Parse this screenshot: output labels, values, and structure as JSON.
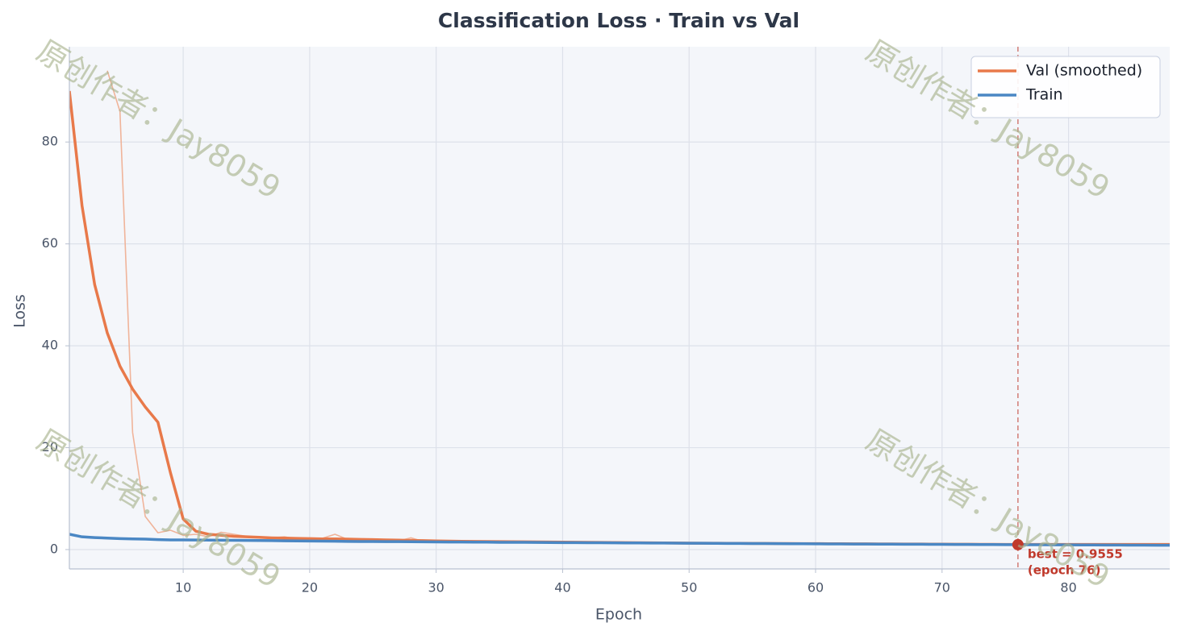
{
  "chart_data": {
    "type": "line",
    "title": "Classification Loss  ·  Train vs Val",
    "x_label": "Epoch",
    "y_label": "Loss",
    "x": [
      1,
      2,
      3,
      4,
      5,
      6,
      7,
      8,
      9,
      10,
      11,
      12,
      13,
      14,
      15,
      16,
      17,
      18,
      19,
      20,
      21,
      22,
      23,
      24,
      25,
      26,
      27,
      28,
      29,
      30,
      31,
      32,
      33,
      34,
      35,
      36,
      37,
      38,
      39,
      40,
      41,
      42,
      43,
      44,
      45,
      46,
      47,
      48,
      49,
      50,
      51,
      52,
      53,
      54,
      55,
      56,
      57,
      58,
      59,
      60,
      61,
      62,
      63,
      64,
      65,
      66,
      67,
      68,
      69,
      70,
      71,
      72,
      73,
      74,
      75,
      76,
      77,
      78,
      79,
      80,
      81,
      82,
      83,
      84,
      85,
      86,
      87,
      88
    ],
    "series": [
      {
        "color": "#f0b49a",
        "values": [
          null,
          null,
          null,
          94,
          86,
          23,
          6.5,
          3.3,
          3.8,
          2.8,
          3.0,
          2.5,
          3.4,
          3.0,
          2.6,
          2.4,
          2.3,
          2.5,
          2.1,
          2.0,
          2.2,
          3.0,
          2.0,
          2.0,
          1.9,
          1.9,
          1.7,
          2.3,
          1.6,
          1.6,
          1.6,
          1.5,
          1.5,
          1.5,
          1.5,
          1.4,
          1.5,
          1.4,
          1.4,
          1.4,
          1.4,
          1.3,
          1.3,
          1.3,
          1.3,
          1.3,
          1.2,
          1.2,
          1.2,
          1.2,
          1.2,
          1.1,
          1.2,
          1.1,
          1.1,
          1.1,
          1.1,
          1.1,
          1.1,
          1.0,
          1.1,
          1.0,
          1.0,
          1.0,
          1.0,
          1.0,
          1.0,
          1.0,
          1.0,
          1.0,
          1.0,
          1.0,
          1.0,
          1.0,
          1.0,
          0.9555,
          1.0,
          1.0,
          1.0,
          1.0,
          1.0,
          1.0,
          1.0,
          1.0,
          1.0,
          1.0,
          1.0,
          1.0
        ]
      },
      {
        "name": "Val (smoothed)",
        "color": "#e8794a",
        "values": [
          90,
          67.5,
          52,
          42.5,
          36,
          31.5,
          28,
          25,
          15,
          6,
          3.6,
          3.0,
          2.8,
          2.6,
          2.5,
          2.4,
          2.3,
          2.25,
          2.2,
          2.15,
          2.1,
          2.1,
          2.05,
          2.0,
          1.95,
          1.9,
          1.85,
          1.8,
          1.75,
          1.7,
          1.65,
          1.62,
          1.6,
          1.58,
          1.56,
          1.54,
          1.52,
          1.5,
          1.48,
          1.46,
          1.44,
          1.42,
          1.4,
          1.38,
          1.36,
          1.34,
          1.32,
          1.3,
          1.28,
          1.26,
          1.25,
          1.24,
          1.23,
          1.22,
          1.21,
          1.2,
          1.19,
          1.18,
          1.17,
          1.16,
          1.15,
          1.14,
          1.13,
          1.12,
          1.11,
          1.1,
          1.09,
          1.08,
          1.07,
          1.06,
          1.05,
          1.04,
          1.03,
          1.02,
          1.01,
          1.0,
          1.0,
          1.0,
          1.0,
          1.0,
          1.0,
          1.0,
          1.0,
          1.0,
          1.0,
          1.0,
          1.0,
          1.0
        ]
      },
      {
        "name": "Train",
        "color": "#4a87c4",
        "values": [
          3.0,
          2.5,
          2.35,
          2.25,
          2.15,
          2.1,
          2.05,
          1.95,
          1.9,
          1.9,
          1.88,
          1.86,
          1.84,
          1.82,
          1.8,
          1.78,
          1.75,
          1.72,
          1.7,
          1.68,
          1.66,
          1.64,
          1.6,
          1.58,
          1.57,
          1.56,
          1.55,
          1.54,
          1.52,
          1.5,
          1.48,
          1.47,
          1.46,
          1.45,
          1.43,
          1.42,
          1.41,
          1.4,
          1.38,
          1.37,
          1.36,
          1.35,
          1.34,
          1.33,
          1.31,
          1.3,
          1.29,
          1.28,
          1.26,
          1.25,
          1.24,
          1.23,
          1.21,
          1.2,
          1.19,
          1.18,
          1.16,
          1.15,
          1.14,
          1.12,
          1.11,
          1.1,
          1.09,
          1.08,
          1.07,
          1.06,
          1.05,
          1.04,
          1.03,
          1.02,
          1.01,
          1.0,
          0.99,
          0.98,
          0.97,
          0.96,
          0.95,
          0.94,
          0.93,
          0.92,
          0.91,
          0.9,
          0.89,
          0.88,
          0.87,
          0.86,
          0.85,
          0.84
        ]
      }
    ],
    "xlim": [
      1,
      88
    ],
    "ylim": [
      -3.8,
      98.7
    ],
    "xticks": [
      10,
      20,
      30,
      40,
      50,
      60,
      70,
      80
    ],
    "yticks": [
      0,
      20,
      40,
      60,
      80
    ],
    "grid": true,
    "legend": "upper right",
    "best": {
      "epoch": 76,
      "value": 0.9555,
      "color": "#c0392b",
      "label": "best = 0.9555",
      "sublabel": "(epoch 76)"
    },
    "watermark": "原创作者：Jay8059"
  }
}
